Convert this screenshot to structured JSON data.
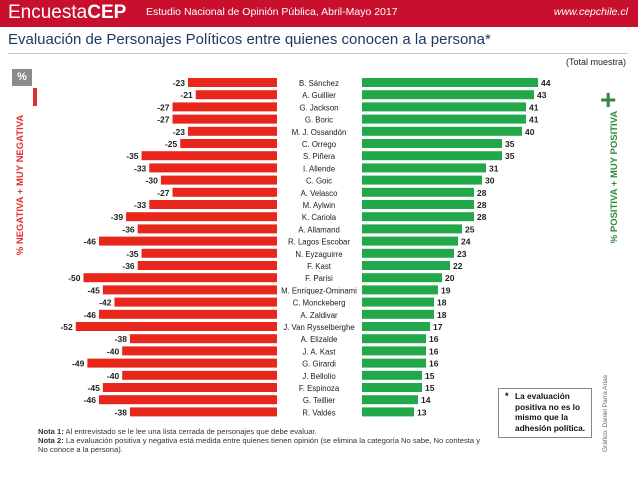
{
  "header": {
    "logo_part1": "Encuesta",
    "logo_part2": "CEP",
    "subtitle": "Estudio Nacional de Opinión Pública, Abril-Mayo 2017",
    "url": "www.cepchile.cl",
    "bg_color": "#c8102e"
  },
  "title": "Evaluación de Personajes Políticos entre quienes conocen a la persona*",
  "total_label": "(Total muestra)",
  "percent_badge": "%",
  "negative_axis_label": "% NEGATIVA + MUY NEGATIVA",
  "positive_axis_label": "% POSITIVA + MUY POSITIVA",
  "negative_symbol": "minus",
  "positive_symbol": "+",
  "note_box": {
    "star": "*",
    "text": "La evaluación positiva no es lo mismo que la adhesión política."
  },
  "notes": {
    "nota1_label": "Nota 1:",
    "nota1_text": "Al entrevistado se le lee una lista cerrada de personajes que debe evaluar.",
    "nota2_label": "Nota 2:",
    "nota2_text": "La evaluación positiva y negativa está medida entre quienes tienen opinión (se elimina la categoría No sabe, No contesta y No conoce a la persona)."
  },
  "credit": "Gráfico: Daniel Parra Arias",
  "chart_data": {
    "type": "bar",
    "orientation": "horizontal-diverging",
    "categories": [
      "B. Sánchez",
      "A. Guillier",
      "G. Jackson",
      "G. Boric",
      "M. J. Ossandón",
      "C. Orrego",
      "S. Piñera",
      "I. Allende",
      "C. Goic",
      "A. Velasco",
      "M. Aylwin",
      "K. Cariola",
      "A. Allamand",
      "R. Lagos Escobar",
      "N. Eyzaguirre",
      "F. Kast",
      "F. Parisi",
      "M. Enríquez-Ominami",
      "C. Monckeberg",
      "A. Zaldivar",
      "J. Van Rysselberghe",
      "A. Elizalde",
      "J. A. Kast",
      "G. Girardi",
      "J. Bellolio",
      "F. Espinoza",
      "G. Teillier",
      "R. Valdés"
    ],
    "series": [
      {
        "values": [
          -23,
          -21,
          -27,
          -27,
          -23,
          -25,
          -35,
          -33,
          -30,
          -27,
          -33,
          -39,
          -36,
          -46,
          -35,
          -36,
          -50,
          -45,
          -42,
          -46,
          -52,
          -38,
          -40,
          -49,
          -40,
          -45,
          -46,
          -38
        ],
        "color": "#e8261c"
      },
      {
        "values": [
          44,
          43,
          41,
          41,
          40,
          35,
          35,
          31,
          30,
          28,
          28,
          28,
          25,
          24,
          23,
          22,
          20,
          19,
          18,
          18,
          17,
          16,
          16,
          16,
          15,
          15,
          14,
          13
        ],
        "color": "#22a84a"
      }
    ],
    "legend": "none"
  }
}
